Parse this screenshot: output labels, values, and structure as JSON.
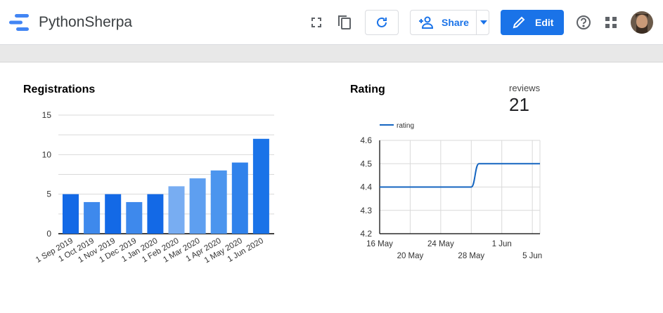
{
  "app": {
    "title": "PythonSherpa"
  },
  "toolbar": {
    "share_label": "Share",
    "edit_label": "Edit"
  },
  "registrations": {
    "title": "Registrations",
    "chart_data": {
      "type": "bar",
      "categories": [
        "1 Sep 2019",
        "1 Oct 2019",
        "1 Nov 2019",
        "1 Dec 2019",
        "1 Jan 2020",
        "1 Feb 2020",
        "1 Mar 2020",
        "1 Apr 2020",
        "1 May 2020",
        "1 Jun 2020"
      ],
      "values": [
        5,
        4,
        5,
        4,
        5,
        6,
        7,
        8,
        9,
        12
      ],
      "yticks": [
        "0",
        "5",
        "10",
        "15"
      ],
      "ylim": [
        0,
        15
      ],
      "colors": [
        "#1369e6",
        "#3e89ec",
        "#1369e6",
        "#3e89ec",
        "#1369e6",
        "#78adf2",
        "#5e9ff0",
        "#4b95ee",
        "#3082eb",
        "#1a73e8"
      ]
    }
  },
  "rating": {
    "title": "Rating",
    "chart_data": {
      "type": "line",
      "legend": "rating",
      "series": [
        {
          "name": "rating",
          "x": [
            "16 May",
            "17 May",
            "18 May",
            "19 May",
            "20 May",
            "21 May",
            "22 May",
            "23 May",
            "24 May",
            "25 May",
            "26 May",
            "27 May",
            "28 May",
            "29 May",
            "30 May",
            "31 May",
            "1 Jun",
            "2 Jun",
            "3 Jun",
            "4 Jun",
            "5 Jun",
            "6 Jun"
          ],
          "values": [
            4.4,
            4.4,
            4.4,
            4.4,
            4.4,
            4.4,
            4.4,
            4.4,
            4.4,
            4.4,
            4.4,
            4.4,
            4.4,
            4.5,
            4.5,
            4.5,
            4.5,
            4.5,
            4.5,
            4.5,
            4.5,
            4.5
          ]
        }
      ],
      "yticks": [
        "4.2",
        "4.3",
        "4.4",
        "4.5",
        "4.6"
      ],
      "ylim": [
        4.2,
        4.6
      ],
      "xticks_top": [
        "16 May",
        "24 May",
        "1 Jun"
      ],
      "xticks_bottom": [
        "20 May",
        "28 May",
        "5 Jun"
      ],
      "line_color": "#1565c0"
    }
  },
  "scorecard": {
    "label": "reviews",
    "value": "21"
  }
}
